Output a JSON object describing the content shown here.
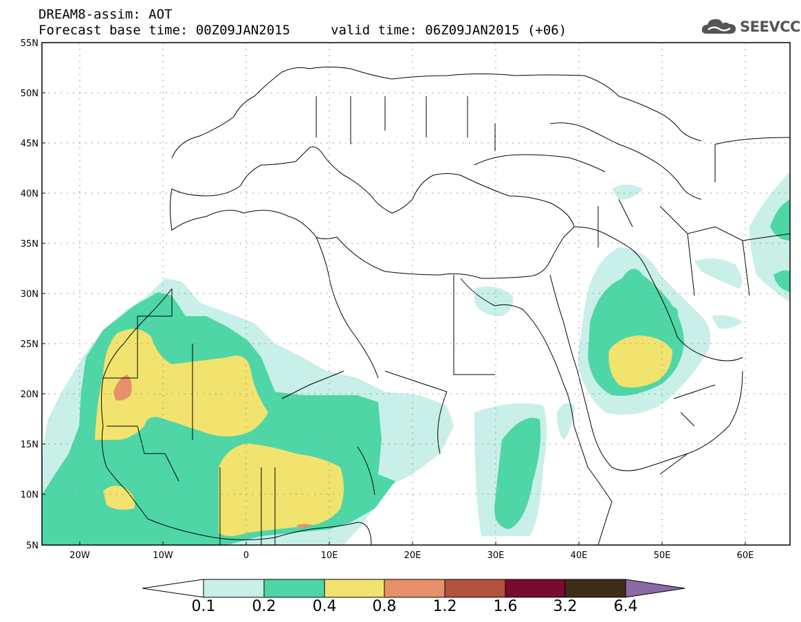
{
  "header": {
    "title": "DREAM8-assim: AOT",
    "base_time": "Forecast base time: 00Z09JAN2015",
    "valid_time": "valid time: 06Z09JAN2015 (+06)",
    "logo_text": "SEEVCCC"
  },
  "map": {
    "extent": {
      "lon": [
        -25,
        65
      ],
      "lat": [
        5,
        55
      ]
    },
    "lat_ticks": [
      "5N",
      "10N",
      "15N",
      "20N",
      "25N",
      "30N",
      "35N",
      "40N",
      "45N",
      "50N",
      "55N"
    ],
    "lon_ticks": [
      "20W",
      "10W",
      "0",
      "10E",
      "20E",
      "30E",
      "40E",
      "50E",
      "60E"
    ],
    "grid": "dotted"
  },
  "colorbar": {
    "levels": [
      "0.1",
      "0.2",
      "0.4",
      "0.8",
      "1.2",
      "1.6",
      "3.2",
      "6.4"
    ],
    "colors": [
      "#ffffff",
      "#c8efe8",
      "#4ed6a6",
      "#f2e36e",
      "#e8906a",
      "#b3523e",
      "#7a0a2e",
      "#3e2d1a",
      "#8a6aa4"
    ]
  },
  "colors": {
    "c1": "#c8efe8",
    "c2": "#4ed6a6",
    "c3": "#f2e36e",
    "c4": "#e8906a"
  }
}
